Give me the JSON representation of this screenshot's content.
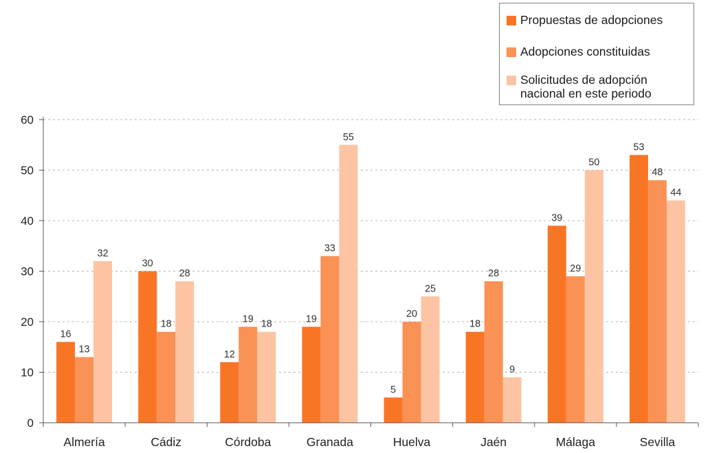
{
  "chart_data": {
    "type": "bar",
    "title": "",
    "xlabel": "",
    "ylabel": "",
    "categories": [
      "Almería",
      "Cádiz",
      "Córdoba",
      "Granada",
      "Huelva",
      "Jaén",
      "Málaga",
      "Sevilla"
    ],
    "series": [
      {
        "name": "Propuestas de adopciones",
        "color": "#f97526",
        "values": [
          16,
          30,
          12,
          19,
          5,
          18,
          39,
          53
        ]
      },
      {
        "name": "Adopciones constituidas",
        "color": "#fa9155",
        "values": [
          13,
          18,
          19,
          33,
          20,
          28,
          29,
          48
        ]
      },
      {
        "name": "Solicitudes de adopción nacional en este periodo",
        "color": "#fcc4a2",
        "values": [
          32,
          28,
          18,
          55,
          25,
          9,
          50,
          44
        ]
      }
    ],
    "ylim": [
      0,
      60
    ],
    "yticks": [
      0,
      10,
      20,
      30,
      40,
      50,
      60
    ],
    "grid": true,
    "legend_position": "top-right"
  },
  "legend": {
    "items": [
      {
        "label": "Propuestas de adopciones",
        "color": "#f97526"
      },
      {
        "label": "Adopciones constituidas",
        "color": "#fa9155"
      },
      {
        "label": "Solicitudes de adopción nacional en este periodo",
        "color": "#fcc4a2"
      }
    ]
  }
}
